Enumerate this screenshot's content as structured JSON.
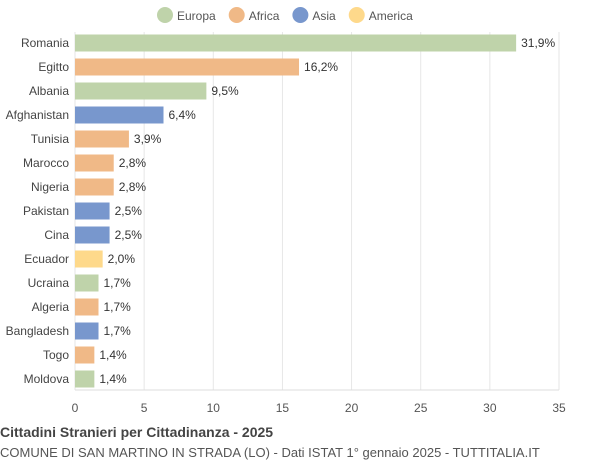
{
  "chart_data": {
    "type": "bar",
    "orientation": "horizontal",
    "title": "Cittadini Stranieri per Cittadinanza - 2025",
    "subtitle": "COMUNE DI SAN MARTINO IN STRADA (LO) - Dati ISTAT 1° gennaio 2025 - TUTTITALIA.IT",
    "legend": [
      {
        "name": "Europa",
        "color": "#bfd3aa"
      },
      {
        "name": "Africa",
        "color": "#f0b987"
      },
      {
        "name": "Asia",
        "color": "#7897cd"
      },
      {
        "name": "America",
        "color": "#fed98b"
      }
    ],
    "legend_position": "top",
    "categories": [
      "Romania",
      "Egitto",
      "Albania",
      "Afghanistan",
      "Tunisia",
      "Marocco",
      "Nigeria",
      "Pakistan",
      "Cina",
      "Ecuador",
      "Ucraina",
      "Algeria",
      "Bangladesh",
      "Togo",
      "Moldova"
    ],
    "values": [
      31.9,
      16.2,
      9.5,
      6.4,
      3.9,
      2.8,
      2.8,
      2.5,
      2.5,
      2.0,
      1.7,
      1.7,
      1.7,
      1.4,
      1.4
    ],
    "labels": [
      "31,9%",
      "16,2%",
      "9,5%",
      "6,4%",
      "3,9%",
      "2,8%",
      "2,8%",
      "2,5%",
      "2,5%",
      "2,0%",
      "1,7%",
      "1,7%",
      "1,7%",
      "1,4%",
      "1,4%"
    ],
    "groups": [
      "Europa",
      "Africa",
      "Europa",
      "Asia",
      "Africa",
      "Africa",
      "Africa",
      "Asia",
      "Asia",
      "America",
      "Europa",
      "Africa",
      "Asia",
      "Africa",
      "Europa"
    ],
    "xlim": [
      0,
      35
    ],
    "xticks": [
      0,
      5,
      10,
      15,
      20,
      25,
      30,
      35
    ],
    "grid": true
  }
}
